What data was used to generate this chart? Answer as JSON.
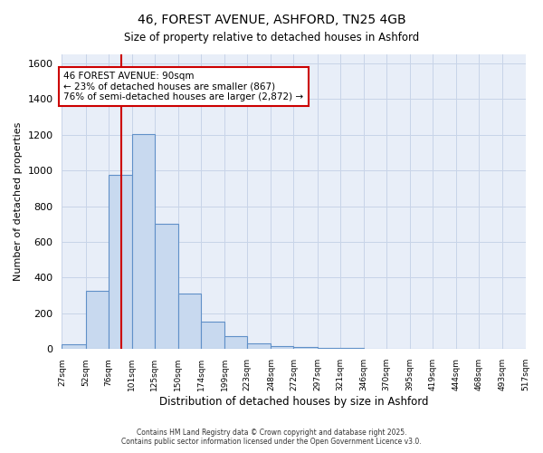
{
  "title_line1": "46, FOREST AVENUE, ASHFORD, TN25 4GB",
  "title_line2": "Size of property relative to detached houses in Ashford",
  "xlabel": "Distribution of detached houses by size in Ashford",
  "ylabel": "Number of detached properties",
  "bar_edges": [
    27,
    52,
    76,
    101,
    125,
    150,
    174,
    199,
    223,
    248,
    272,
    297,
    321,
    346,
    370,
    395,
    419,
    444,
    468,
    493,
    517
  ],
  "bar_heights": [
    25,
    325,
    975,
    1205,
    700,
    310,
    155,
    75,
    30,
    15,
    12,
    5,
    5,
    3,
    2,
    2,
    1,
    1,
    1,
    1
  ],
  "bar_color": "#c8d9ef",
  "bar_edge_color": "#6090c8",
  "bar_linewidth": 0.8,
  "red_line_x": 90,
  "red_line_color": "#cc0000",
  "ylim": [
    0,
    1650
  ],
  "yticks": [
    0,
    200,
    400,
    600,
    800,
    1000,
    1200,
    1400,
    1600
  ],
  "annotation_text": "46 FOREST AVENUE: 90sqm\n← 23% of detached houses are smaller (867)\n76% of semi-detached houses are larger (2,872) →",
  "annotation_box_color": "#ffffff",
  "annotation_box_edge": "#cc0000",
  "grid_color": "#c8d4e8",
  "bg_color": "#e8eef8",
  "fig_bg_color": "#ffffff",
  "footnote1": "Contains HM Land Registry data © Crown copyright and database right 2025.",
  "footnote2": "Contains public sector information licensed under the Open Government Licence v3.0."
}
